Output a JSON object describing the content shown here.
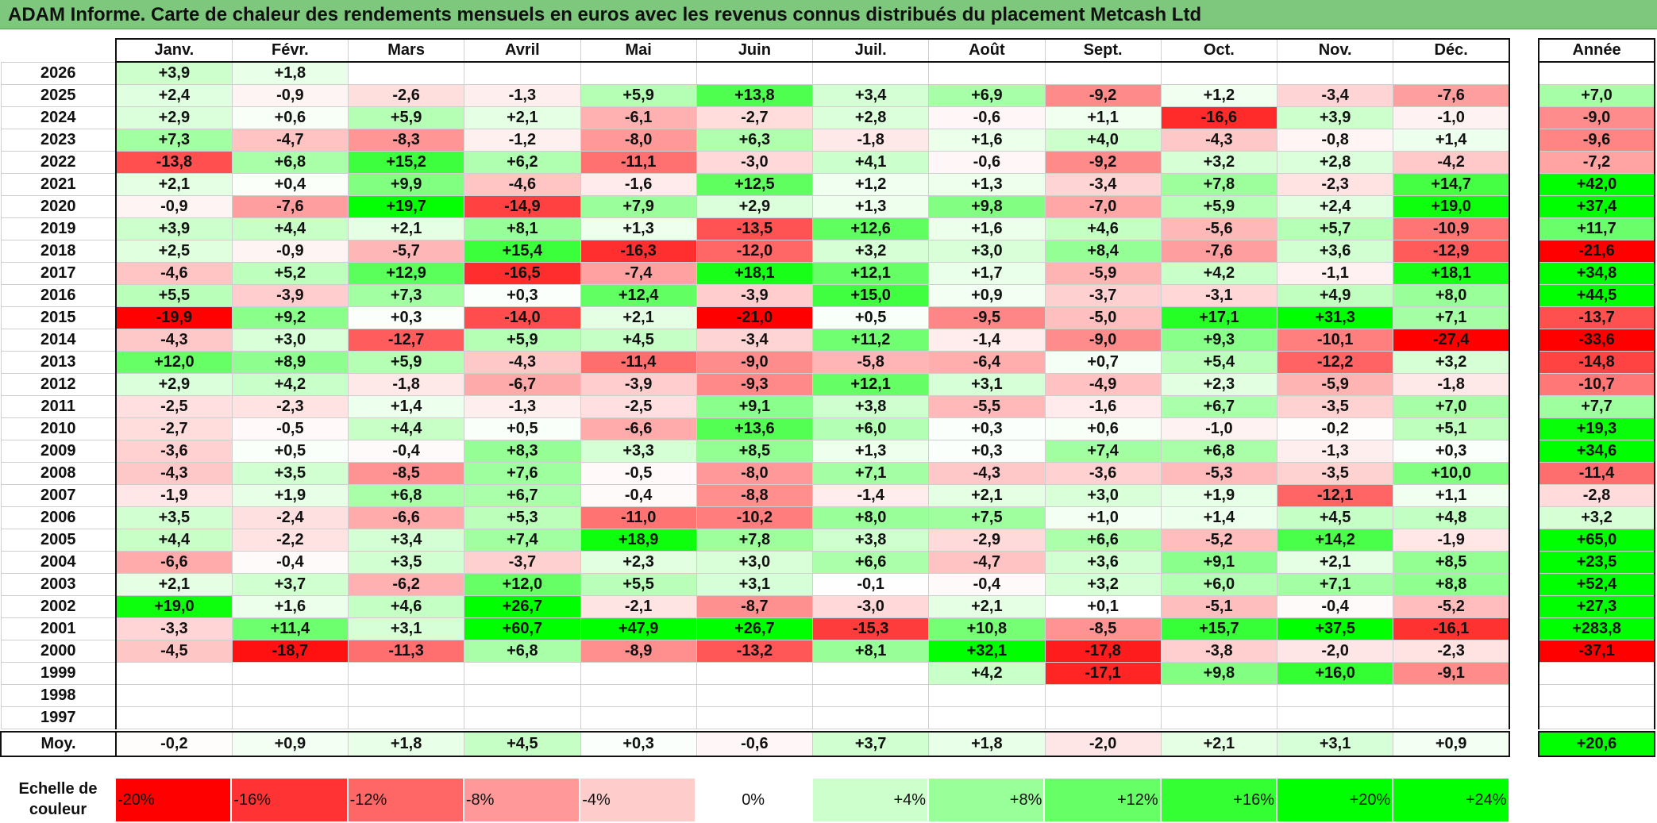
{
  "title": "ADAM Informe. Carte de chaleur des rendements mensuels en euros avec les revenus connus distribués du placement Metcash Ltd",
  "annual_header": "Année",
  "avg_label": "Moy.",
  "scale_label_line1": "Echelle de",
  "scale_label_line2": "couleur",
  "scale_steps": [
    "-20%",
    "-16%",
    "-12%",
    "-8%",
    "-4%",
    "0%",
    "+4%",
    "+8%",
    "+12%",
    "+16%",
    "+20%",
    "+24%"
  ],
  "scale_values": [
    -20,
    -16,
    -12,
    -8,
    -4,
    0,
    4,
    8,
    12,
    16,
    20,
    24
  ],
  "colors": {
    "negative": "#ff0000",
    "positive": "#00ff00",
    "neutral": "#ffffff",
    "title_bg": "#7ec87e"
  },
  "chart_data": {
    "type": "heatmap",
    "title": "ADAM Informe. Carte de chaleur des rendements mensuels en euros avec les revenus connus distribués du placement Metcash Ltd",
    "columns": [
      "Janv.",
      "Févr.",
      "Mars",
      "Avril",
      "Mai",
      "Juin",
      "Juil.",
      "Août",
      "Sept.",
      "Oct.",
      "Nov.",
      "Déc."
    ],
    "rows": [
      {
        "year": "2026",
        "values": [
          "+3,9",
          "+1,8",
          "",
          "",
          "",
          "",
          "",
          "",
          "",
          "",
          "",
          ""
        ],
        "annual": ""
      },
      {
        "year": "2025",
        "values": [
          "+2,4",
          "-0,9",
          "-2,6",
          "-1,3",
          "+5,9",
          "+13,8",
          "+3,4",
          "+6,9",
          "-9,2",
          "+1,2",
          "-3,4",
          "-7,6"
        ],
        "annual": "+7,0"
      },
      {
        "year": "2024",
        "values": [
          "+2,9",
          "+0,6",
          "+5,9",
          "+2,1",
          "-6,1",
          "-2,7",
          "+2,8",
          "-0,6",
          "+1,1",
          "-16,6",
          "+3,9",
          "-1,0"
        ],
        "annual": "-9,0"
      },
      {
        "year": "2023",
        "values": [
          "+7,3",
          "-4,7",
          "-8,3",
          "-1,2",
          "-8,0",
          "+6,3",
          "-1,8",
          "+1,6",
          "+4,0",
          "-4,3",
          "-0,8",
          "+1,4"
        ],
        "annual": "-9,6"
      },
      {
        "year": "2022",
        "values": [
          "-13,8",
          "+6,8",
          "+15,2",
          "+6,2",
          "-11,1",
          "-3,0",
          "+4,1",
          "-0,6",
          "-9,2",
          "+3,2",
          "+2,8",
          "-4,2"
        ],
        "annual": "-7,2"
      },
      {
        "year": "2021",
        "values": [
          "+2,1",
          "+0,4",
          "+9,9",
          "-4,6",
          "-1,6",
          "+12,5",
          "+1,2",
          "+1,3",
          "-3,4",
          "+7,8",
          "-2,3",
          "+14,7"
        ],
        "annual": "+42,0"
      },
      {
        "year": "2020",
        "values": [
          "-0,9",
          "-7,6",
          "+19,7",
          "-14,9",
          "+7,9",
          "+2,9",
          "+1,3",
          "+9,8",
          "-7,0",
          "+5,9",
          "+2,4",
          "+19,0"
        ],
        "annual": "+37,4"
      },
      {
        "year": "2019",
        "values": [
          "+3,9",
          "+4,4",
          "+2,1",
          "+8,1",
          "+1,3",
          "-13,5",
          "+12,6",
          "+1,6",
          "+4,6",
          "-5,6",
          "+5,7",
          "-10,9"
        ],
        "annual": "+11,7"
      },
      {
        "year": "2018",
        "values": [
          "+2,5",
          "-0,9",
          "-5,7",
          "+15,4",
          "-16,3",
          "-12,0",
          "+3,2",
          "+3,0",
          "+8,4",
          "-7,6",
          "+3,6",
          "-12,9"
        ],
        "annual": "-21,6"
      },
      {
        "year": "2017",
        "values": [
          "-4,6",
          "+5,2",
          "+12,9",
          "-16,5",
          "-7,4",
          "+18,1",
          "+12,1",
          "+1,7",
          "-5,9",
          "+4,2",
          "-1,1",
          "+18,1"
        ],
        "annual": "+34,8"
      },
      {
        "year": "2016",
        "values": [
          "+5,5",
          "-3,9",
          "+7,3",
          "+0,3",
          "+12,4",
          "-3,9",
          "+15,0",
          "+0,9",
          "-3,7",
          "-3,1",
          "+4,9",
          "+8,0"
        ],
        "annual": "+44,5"
      },
      {
        "year": "2015",
        "values": [
          "-19,9",
          "+9,2",
          "+0,3",
          "-14,0",
          "+2,1",
          "-21,0",
          "+0,5",
          "-9,5",
          "-5,0",
          "+17,1",
          "+31,3",
          "+7,1"
        ],
        "annual": "-13,7"
      },
      {
        "year": "2014",
        "values": [
          "-4,3",
          "+3,0",
          "-12,7",
          "+5,9",
          "+4,5",
          "-3,4",
          "+11,2",
          "-1,4",
          "-9,0",
          "+9,3",
          "-10,1",
          "-27,4"
        ],
        "annual": "-33,6"
      },
      {
        "year": "2013",
        "values": [
          "+12,0",
          "+8,9",
          "+5,9",
          "-4,3",
          "-11,4",
          "-9,0",
          "-5,8",
          "-6,4",
          "+0,7",
          "+5,4",
          "-12,2",
          "+3,2"
        ],
        "annual": "-14,8"
      },
      {
        "year": "2012",
        "values": [
          "+2,9",
          "+4,2",
          "-1,8",
          "-6,7",
          "-3,9",
          "-9,3",
          "+12,1",
          "+3,1",
          "-4,9",
          "+2,3",
          "-5,9",
          "-1,8"
        ],
        "annual": "-10,7"
      },
      {
        "year": "2011",
        "values": [
          "-2,5",
          "-2,3",
          "+1,4",
          "-1,3",
          "-2,5",
          "+9,1",
          "+3,8",
          "-5,5",
          "-1,6",
          "+6,7",
          "-3,5",
          "+7,0"
        ],
        "annual": "+7,7"
      },
      {
        "year": "2010",
        "values": [
          "-2,7",
          "-0,5",
          "+4,4",
          "+0,5",
          "-6,6",
          "+13,6",
          "+6,0",
          "+0,3",
          "+0,6",
          "-1,0",
          "-0,2",
          "+5,1"
        ],
        "annual": "+19,3"
      },
      {
        "year": "2009",
        "values": [
          "-3,6",
          "+0,5",
          "-0,4",
          "+8,3",
          "+3,3",
          "+8,5",
          "+1,3",
          "+0,3",
          "+7,4",
          "+6,8",
          "-1,3",
          "+0,3"
        ],
        "annual": "+34,6"
      },
      {
        "year": "2008",
        "values": [
          "-4,3",
          "+3,5",
          "-8,5",
          "+7,6",
          "-0,5",
          "-8,0",
          "+7,1",
          "-4,3",
          "-3,6",
          "-5,3",
          "-3,5",
          "+10,0"
        ],
        "annual": "-11,4"
      },
      {
        "year": "2007",
        "values": [
          "-1,9",
          "+1,9",
          "+6,8",
          "+6,7",
          "-0,4",
          "-8,8",
          "-1,4",
          "+2,1",
          "+3,0",
          "+1,9",
          "-12,1",
          "+1,1"
        ],
        "annual": "-2,8"
      },
      {
        "year": "2006",
        "values": [
          "+3,5",
          "-2,4",
          "-6,6",
          "+5,3",
          "-11,0",
          "-10,2",
          "+8,0",
          "+7,5",
          "+1,0",
          "+1,4",
          "+4,5",
          "+4,8"
        ],
        "annual": "+3,2"
      },
      {
        "year": "2005",
        "values": [
          "+4,4",
          "-2,2",
          "+3,4",
          "+7,4",
          "+18,9",
          "+7,8",
          "+3,8",
          "-2,9",
          "+6,6",
          "-5,2",
          "+14,2",
          "-1,9"
        ],
        "annual": "+65,0"
      },
      {
        "year": "2004",
        "values": [
          "-6,6",
          "-0,4",
          "+3,5",
          "-3,7",
          "+2,3",
          "+3,0",
          "+6,6",
          "-4,7",
          "+3,6",
          "+9,1",
          "+2,1",
          "+8,5"
        ],
        "annual": "+23,5"
      },
      {
        "year": "2003",
        "values": [
          "+2,1",
          "+3,7",
          "-6,2",
          "+12,0",
          "+5,5",
          "+3,1",
          "-0,1",
          "-0,4",
          "+3,2",
          "+6,0",
          "+7,1",
          "+8,8"
        ],
        "annual": "+52,4"
      },
      {
        "year": "2002",
        "values": [
          "+19,0",
          "+1,6",
          "+4,6",
          "+26,7",
          "-2,1",
          "-8,7",
          "-3,0",
          "+2,1",
          "+0,1",
          "-5,1",
          "-0,4",
          "-5,2"
        ],
        "annual": "+27,3"
      },
      {
        "year": "2001",
        "values": [
          "-3,3",
          "+11,4",
          "+3,1",
          "+60,7",
          "+47,9",
          "+26,7",
          "-15,3",
          "+10,8",
          "-8,5",
          "+15,7",
          "+37,5",
          "-16,1"
        ],
        "annual": "+283,8"
      },
      {
        "year": "2000",
        "values": [
          "-4,5",
          "-18,7",
          "-11,3",
          "+6,8",
          "-8,9",
          "-13,2",
          "+8,1",
          "+32,1",
          "-17,8",
          "-3,8",
          "-2,0",
          "-2,3"
        ],
        "annual": "-37,1"
      },
      {
        "year": "1999",
        "values": [
          "",
          "",
          "",
          "",
          "",
          "",
          "",
          "+4,2",
          "-17,1",
          "+9,8",
          "+16,0",
          "-9,1"
        ],
        "annual": ""
      },
      {
        "year": "1998",
        "values": [
          "",
          "",
          "",
          "",
          "",
          "",
          "",
          "",
          "",
          "",
          "",
          ""
        ],
        "annual": ""
      },
      {
        "year": "1997",
        "values": [
          "",
          "",
          "",
          "",
          "",
          "",
          "",
          "",
          "",
          "",
          "",
          ""
        ],
        "annual": ""
      }
    ],
    "average": {
      "label": "Moy.",
      "values": [
        "-0,2",
        "+0,9",
        "+1,8",
        "+4,5",
        "+0,3",
        "-0,6",
        "+3,7",
        "+1,8",
        "-2,0",
        "+2,1",
        "+3,1",
        "+0,9"
      ],
      "annual": "+20,6"
    }
  }
}
